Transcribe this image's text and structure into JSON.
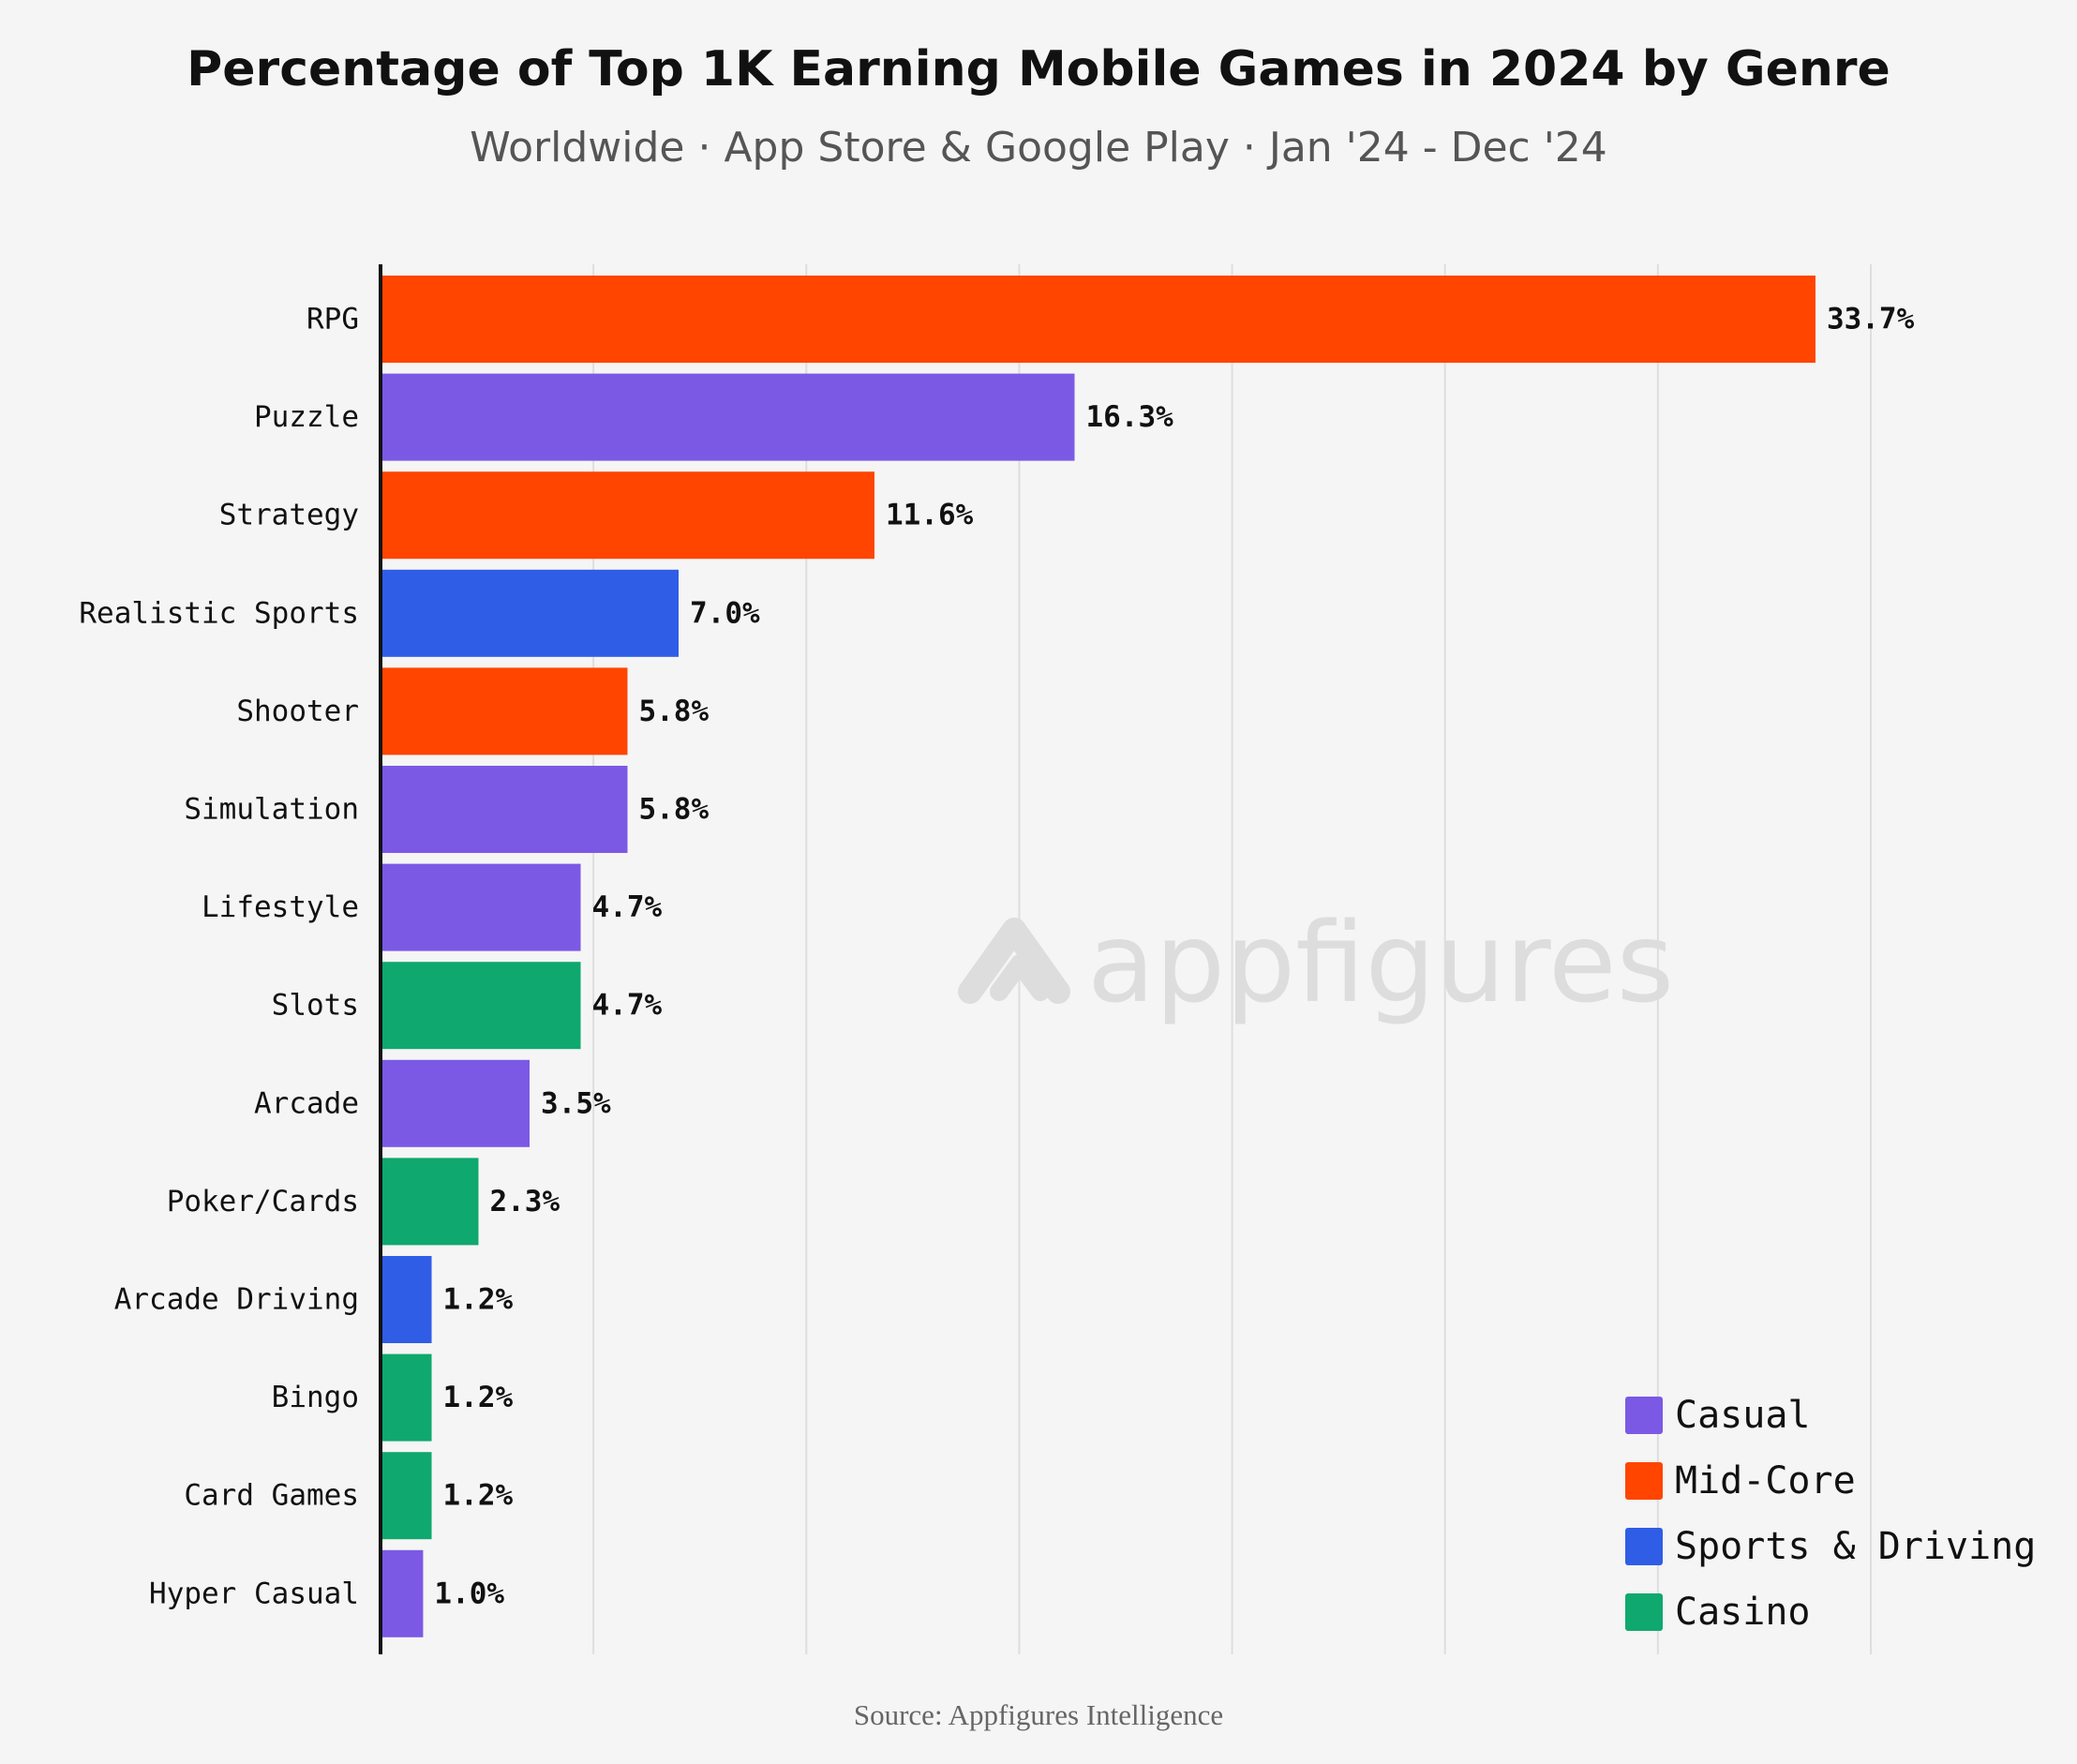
{
  "chart_data": {
    "type": "bar",
    "orientation": "horizontal",
    "title": "Percentage of Top 1K Earning Mobile Games in 2024 by Genre",
    "subtitle": "Worldwide · App Store & Google Play · Jan '24 - Dec '24",
    "source": "Source: Appfigures Intelligence",
    "watermark": "appfigures",
    "categories": [
      "RPG",
      "Puzzle",
      "Strategy",
      "Realistic Sports",
      "Shooter",
      "Simulation",
      "Lifestyle",
      "Slots",
      "Arcade",
      "Poker/Cards",
      "Arcade Driving",
      "Bingo",
      "Card Games",
      "Hyper Casual"
    ],
    "values": [
      33.7,
      16.3,
      11.6,
      7.0,
      5.8,
      5.8,
      4.7,
      4.7,
      3.5,
      2.3,
      1.2,
      1.2,
      1.2,
      1.0
    ],
    "value_labels": [
      "33.7%",
      "16.3%",
      "11.6%",
      "7.0%",
      "5.8%",
      "5.8%",
      "4.7%",
      "4.7%",
      "3.5%",
      "2.3%",
      "1.2%",
      "1.2%",
      "1.2%",
      "1.0%"
    ],
    "groups": [
      "Mid-Core",
      "Casual",
      "Mid-Core",
      "Sports & Driving",
      "Mid-Core",
      "Casual",
      "Casual",
      "Casino",
      "Casual",
      "Casino",
      "Sports & Driving",
      "Casino",
      "Casino",
      "Casual"
    ],
    "legend": [
      {
        "name": "Casual",
        "color": "#7b59e5"
      },
      {
        "name": "Mid-Core",
        "color": "#ff4500"
      },
      {
        "name": "Sports & Driving",
        "color": "#2f5de6"
      },
      {
        "name": "Casino",
        "color": "#0fa86e"
      }
    ],
    "legend_position": "bottom-right",
    "xlim": [
      0,
      35
    ],
    "gridline_step": 5,
    "grid": true,
    "xlabel": "",
    "ylabel": ""
  }
}
